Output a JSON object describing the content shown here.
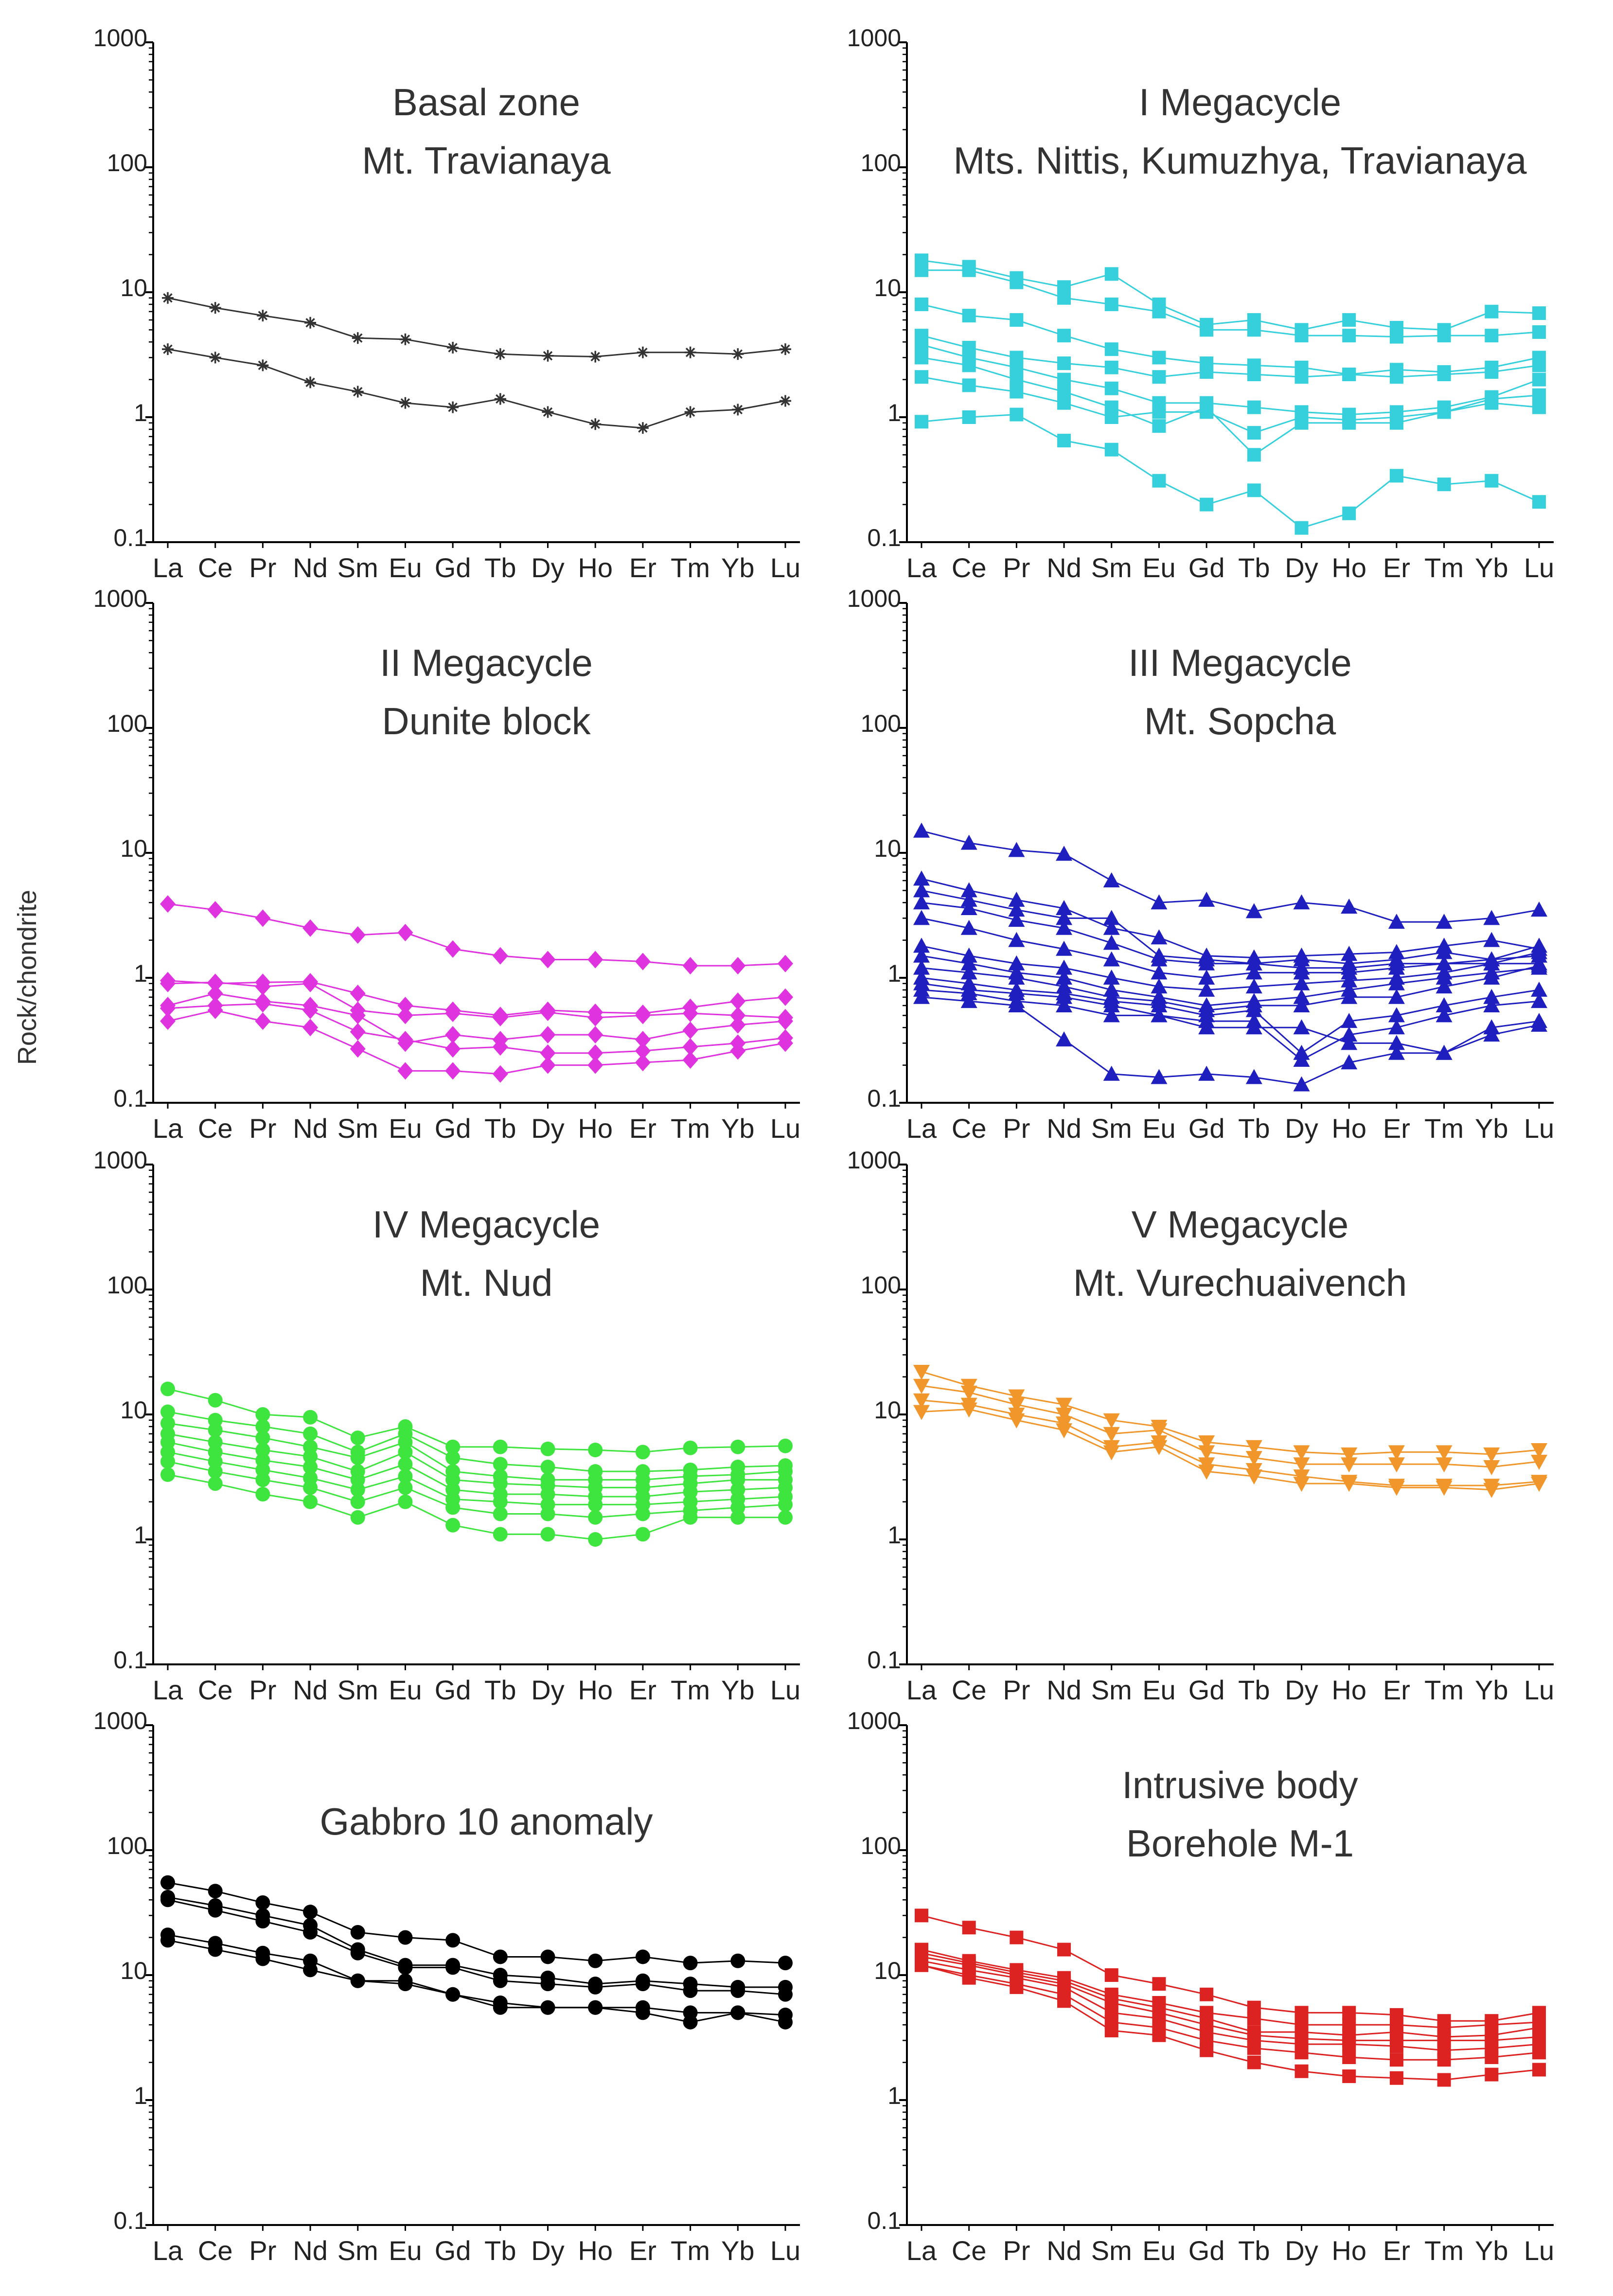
{
  "figure": {
    "ylabel": "Rock/chondrite",
    "xticks": [
      "La",
      "Ce",
      "Pr",
      "Nd",
      "Sm",
      "Eu",
      "Gd",
      "Tb",
      "Dy",
      "Ho",
      "Er",
      "Tm",
      "Yb",
      "Lu"
    ],
    "yticks": [
      "0.1",
      "1",
      "10",
      "100",
      "1000"
    ]
  },
  "chart_data": [
    {
      "type": "line",
      "scale": "log",
      "ylim": [
        0.1,
        1000
      ],
      "title": "Basal zone",
      "subtitle": "Mt. Travianaya",
      "marker": "star",
      "color": "#333333",
      "series": [
        {
          "name": "1",
          "values": [
            9,
            7.5,
            6.5,
            5.7,
            4.3,
            4.2,
            3.6,
            3.2,
            3.1,
            3.05,
            3.3,
            3.3,
            3.2,
            3.5
          ]
        },
        {
          "name": "2",
          "values": [
            3.5,
            3,
            2.6,
            1.9,
            1.6,
            1.3,
            1.2,
            1.4,
            1.1,
            0.88,
            0.82,
            1.1,
            1.15,
            1.35
          ]
        }
      ]
    },
    {
      "type": "line",
      "scale": "log",
      "ylim": [
        0.1,
        1000
      ],
      "title": "I Megacycle",
      "subtitle": "Mts. Nittis, Kumuzhya, Travianaya",
      "marker": "square",
      "color": "#35d0dc",
      "series": [
        {
          "name": "1",
          "values": [
            18,
            16,
            13,
            11,
            14,
            8,
            5.5,
            6,
            5,
            6,
            5.2,
            5,
            7,
            6.8
          ]
        },
        {
          "name": "2",
          "values": [
            15,
            15,
            12,
            9,
            8,
            7,
            5,
            5,
            4.5,
            4.5,
            4.4,
            4.5,
            4.5,
            4.8
          ]
        },
        {
          "name": "3",
          "values": [
            8,
            6.5,
            6,
            4.5,
            3.5,
            3,
            2.7,
            2.6,
            2.5,
            2.2,
            2.4,
            2.3,
            2.5,
            3
          ]
        },
        {
          "name": "4",
          "values": [
            4.5,
            3.6,
            3,
            2.7,
            2.5,
            2.1,
            2.3,
            2.2,
            2.1,
            2.2,
            2.1,
            2.2,
            2.3,
            2.6
          ]
        },
        {
          "name": "5",
          "values": [
            3.8,
            3,
            2.5,
            2,
            1.7,
            1.3,
            1.3,
            1.2,
            1.1,
            1.05,
            1.1,
            1.2,
            1.45,
            2
          ]
        },
        {
          "name": "6",
          "values": [
            3,
            2.6,
            2,
            1.6,
            1.2,
            0.85,
            1.2,
            0.5,
            0.9,
            0.9,
            0.9,
            1.1,
            1.3,
            1.2
          ]
        },
        {
          "name": "7",
          "values": [
            2.1,
            1.8,
            1.6,
            1.3,
            1,
            1.1,
            1.1,
            0.75,
            1,
            0.95,
            1,
            1.1,
            1.4,
            1.5
          ]
        },
        {
          "name": "8",
          "values": [
            0.92,
            1,
            1.05,
            0.65,
            0.55,
            0.31,
            0.2,
            0.26,
            0.13,
            0.17,
            0.34,
            0.29,
            0.31,
            0.21
          ]
        }
      ]
    },
    {
      "type": "line",
      "scale": "log",
      "ylim": [
        0.1,
        1000
      ],
      "title": "II Megacycle",
      "subtitle": "Dunite block",
      "marker": "diamond",
      "color": "#e033e0",
      "series": [
        {
          "name": "1",
          "values": [
            3.9,
            3.5,
            3,
            2.5,
            2.2,
            2.3,
            1.7,
            1.5,
            1.4,
            1.4,
            1.35,
            1.25,
            1.25,
            1.3
          ]
        },
        {
          "name": "2",
          "values": [
            0.95,
            0.9,
            0.92,
            0.93,
            0.75,
            0.6,
            0.55,
            0.5,
            0.55,
            0.53,
            0.52,
            0.58,
            0.65,
            0.7
          ]
        },
        {
          "name": "3",
          "values": [
            0.9,
            0.92,
            0.85,
            0.9,
            0.55,
            0.5,
            0.52,
            0.48,
            0.53,
            0.48,
            0.5,
            0.52,
            0.5,
            0.48
          ]
        },
        {
          "name": "4",
          "values": [
            0.6,
            0.75,
            0.65,
            0.6,
            0.5,
            0.3,
            0.35,
            0.32,
            0.35,
            0.35,
            0.32,
            0.38,
            0.42,
            0.45
          ]
        },
        {
          "name": "5",
          "values": [
            0.57,
            0.6,
            0.62,
            0.55,
            0.37,
            0.32,
            0.27,
            0.28,
            0.25,
            0.25,
            0.26,
            0.28,
            0.3,
            0.33
          ]
        },
        {
          "name": "6",
          "values": [
            0.45,
            0.55,
            0.45,
            0.4,
            0.27,
            0.18,
            0.18,
            0.17,
            0.2,
            0.2,
            0.21,
            0.22,
            0.26,
            0.3
          ]
        }
      ]
    },
    {
      "type": "line",
      "scale": "log",
      "ylim": [
        0.1,
        1000
      ],
      "title": "III Megacycle",
      "subtitle": "Mt. Sopcha",
      "marker": "triangle-up",
      "color": "#1f1fbf",
      "series": [
        {
          "name": "1",
          "values": [
            15,
            12,
            10.5,
            9.8,
            6,
            4,
            4.2,
            3.4,
            4,
            3.7,
            2.8,
            2.8,
            3,
            3.5
          ]
        },
        {
          "name": "2",
          "values": [
            6.2,
            5,
            4.2,
            3.6,
            2.5,
            2.1,
            1.5,
            1.45,
            1.5,
            1.55,
            1.6,
            1.8,
            2,
            1.7
          ]
        },
        {
          "name": "3",
          "values": [
            5,
            4.2,
            3.5,
            3,
            3,
            1.5,
            1.4,
            1.3,
            1.4,
            1.3,
            1.4,
            1.6,
            1.4,
            1.5
          ]
        },
        {
          "name": "4",
          "values": [
            4,
            3.6,
            2.9,
            2.5,
            1.9,
            1.4,
            1.3,
            1.3,
            1.2,
            1.2,
            1.3,
            1.3,
            1.3,
            1.3
          ]
        },
        {
          "name": "5",
          "values": [
            3,
            2.5,
            2,
            1.7,
            1.4,
            1.1,
            1,
            1.1,
            1.1,
            1.1,
            1.2,
            1.3,
            1.4,
            1.8
          ]
        },
        {
          "name": "6",
          "values": [
            1.8,
            1.5,
            1.3,
            1.2,
            1,
            0.85,
            0.8,
            0.85,
            0.9,
            0.95,
            1,
            1.1,
            1.3,
            1.6
          ]
        },
        {
          "name": "7",
          "values": [
            1.5,
            1.3,
            1.1,
            1,
            0.8,
            0.7,
            0.6,
            0.65,
            0.7,
            0.8,
            0.9,
            1,
            1.1,
            1.2
          ]
        },
        {
          "name": "8",
          "values": [
            1.2,
            1.1,
            1,
            0.85,
            0.7,
            0.65,
            0.55,
            0.6,
            0.6,
            0.7,
            0.7,
            0.85,
            1,
            1.25
          ]
        },
        {
          "name": "9",
          "values": [
            1,
            0.9,
            0.8,
            0.75,
            0.65,
            0.6,
            0.5,
            0.55,
            0.25,
            0.45,
            0.5,
            0.6,
            0.7,
            0.8
          ]
        },
        {
          "name": "10",
          "values": [
            0.9,
            0.8,
            0.75,
            0.7,
            0.6,
            0.5,
            0.45,
            0.45,
            0.22,
            0.35,
            0.4,
            0.5,
            0.6,
            0.65
          ]
        },
        {
          "name": "11",
          "values": [
            0.8,
            0.75,
            0.65,
            0.6,
            0.5,
            0.5,
            0.4,
            0.4,
            0.4,
            0.3,
            0.3,
            0.25,
            0.4,
            0.45
          ]
        },
        {
          "name": "12",
          "values": [
            0.7,
            0.65,
            0.6,
            0.32,
            0.17,
            0.16,
            0.17,
            0.16,
            0.14,
            0.21,
            0.25,
            0.25,
            0.35,
            0.42
          ]
        }
      ]
    },
    {
      "type": "line",
      "scale": "log",
      "ylim": [
        0.1,
        1000
      ],
      "title": "IV Megacycle",
      "subtitle": "Mt. Nud",
      "marker": "circle",
      "color": "#3ee53e",
      "series": [
        {
          "name": "1",
          "values": [
            16,
            13,
            10,
            9.5,
            6.5,
            8,
            5.5,
            5.5,
            5.3,
            5.2,
            5,
            5.4,
            5.5,
            5.6
          ]
        },
        {
          "name": "2",
          "values": [
            10.5,
            9,
            8,
            7,
            5,
            7,
            4.5,
            4,
            3.8,
            3.5,
            3.5,
            3.6,
            3.8,
            3.9
          ]
        },
        {
          "name": "3",
          "values": [
            8.5,
            7.5,
            6.5,
            5.5,
            4.5,
            6,
            3.5,
            3.2,
            3,
            3,
            3,
            3.2,
            3.3,
            3.5
          ]
        },
        {
          "name": "4",
          "values": [
            7,
            6,
            5.2,
            4.6,
            3.5,
            5,
            3,
            2.8,
            2.7,
            2.6,
            2.6,
            2.8,
            3,
            3
          ]
        },
        {
          "name": "5",
          "values": [
            6,
            5,
            4.3,
            3.8,
            3,
            4,
            2.5,
            2.3,
            2.3,
            2.2,
            2.2,
            2.4,
            2.5,
            2.6
          ]
        },
        {
          "name": "6",
          "values": [
            5,
            4.2,
            3.6,
            3.1,
            2.5,
            3.2,
            2.1,
            2,
            1.9,
            1.9,
            1.9,
            2,
            2.1,
            2.2
          ]
        },
        {
          "name": "7",
          "values": [
            4.2,
            3.5,
            3,
            2.6,
            2,
            2.6,
            1.8,
            1.6,
            1.6,
            1.5,
            1.6,
            1.7,
            1.8,
            1.9
          ]
        },
        {
          "name": "8",
          "values": [
            3.3,
            2.8,
            2.3,
            2,
            1.5,
            2,
            1.3,
            1.1,
            1.1,
            1,
            1.1,
            1.5,
            1.5,
            1.5
          ]
        }
      ]
    },
    {
      "type": "line",
      "scale": "log",
      "ylim": [
        0.1,
        1000
      ],
      "title": "V Megacycle",
      "subtitle": "Mt. Vurechuaivench",
      "marker": "triangle-down",
      "color": "#f0962a",
      "series": [
        {
          "name": "1",
          "values": [
            22,
            17,
            14,
            12,
            9,
            8,
            6,
            5.5,
            5,
            4.8,
            5,
            5,
            4.8,
            5.2
          ]
        },
        {
          "name": "2",
          "values": [
            17,
            15,
            12,
            10,
            7,
            7.5,
            5,
            4.5,
            4,
            4,
            4,
            4,
            3.8,
            4.2
          ]
        },
        {
          "name": "3",
          "values": [
            13,
            12,
            10,
            8.5,
            5.5,
            6,
            4,
            3.6,
            3.2,
            2.9,
            2.7,
            2.7,
            2.7,
            2.9
          ]
        },
        {
          "name": "4",
          "values": [
            10.5,
            11,
            9,
            7.5,
            5,
            5.5,
            3.5,
            3.2,
            2.8,
            2.8,
            2.6,
            2.6,
            2.5,
            2.8
          ]
        }
      ]
    },
    {
      "type": "line",
      "scale": "log",
      "ylim": [
        0.1,
        1000
      ],
      "title": "Gabbro 10 anomaly",
      "subtitle": "",
      "marker": "circle",
      "color": "#000000",
      "series": [
        {
          "name": "1",
          "values": [
            55,
            47,
            38,
            32,
            22,
            20,
            19,
            14,
            14,
            13,
            14,
            12.5,
            13,
            12.5
          ]
        },
        {
          "name": "2",
          "values": [
            42,
            36,
            30,
            25,
            16,
            12,
            12,
            10,
            9.5,
            8.5,
            9,
            8.5,
            8,
            8
          ]
        },
        {
          "name": "3",
          "values": [
            40,
            33,
            27,
            22,
            15,
            11.5,
            11.5,
            9,
            8.5,
            8,
            8.5,
            7.5,
            7.5,
            7
          ]
        },
        {
          "name": "4",
          "values": [
            21,
            18,
            15,
            13,
            9,
            9,
            7,
            6,
            5.5,
            5.5,
            5.5,
            5,
            5,
            4.8
          ]
        },
        {
          "name": "5",
          "values": [
            19,
            16,
            13.5,
            11,
            9,
            8.5,
            7,
            5.5,
            5.5,
            5.5,
            5,
            4.2,
            5,
            4.2
          ]
        }
      ]
    },
    {
      "type": "line",
      "scale": "log",
      "ylim": [
        0.1,
        1000
      ],
      "title": "Intrusive body",
      "subtitle": "Borehole M-1",
      "marker": "square",
      "color": "#dd2222",
      "series": [
        {
          "name": "1",
          "values": [
            30,
            24,
            20,
            16,
            10,
            8.5,
            7,
            5.5,
            5,
            5,
            4.8,
            4.3,
            4.3,
            5
          ]
        },
        {
          "name": "2",
          "values": [
            16,
            13,
            11,
            9.5,
            7,
            6,
            5,
            4.5,
            4,
            4,
            4,
            3.8,
            4,
            4.2
          ]
        },
        {
          "name": "3",
          "values": [
            15,
            12.5,
            10.5,
            9,
            6.5,
            5.5,
            4.5,
            3.5,
            3.5,
            3.3,
            3.5,
            3.2,
            3.3,
            3.8
          ]
        },
        {
          "name": "4",
          "values": [
            14,
            12,
            10,
            8.5,
            6,
            5,
            4,
            3.3,
            3.1,
            3,
            3,
            3,
            3,
            3.2
          ]
        },
        {
          "name": "5",
          "values": [
            13,
            11,
            9.5,
            8,
            5,
            4.5,
            3.5,
            3,
            2.8,
            2.8,
            2.7,
            2.5,
            2.6,
            2.8
          ]
        },
        {
          "name": "6",
          "values": [
            12,
            10,
            8.5,
            7,
            4.2,
            3.8,
            3,
            2.6,
            2.4,
            2.2,
            2.1,
            2.1,
            2.2,
            2.4
          ]
        },
        {
          "name": "7",
          "values": [
            12,
            9.5,
            8,
            6.2,
            3.6,
            3.3,
            2.5,
            2,
            1.7,
            1.55,
            1.5,
            1.45,
            1.6,
            1.75
          ]
        }
      ]
    }
  ]
}
